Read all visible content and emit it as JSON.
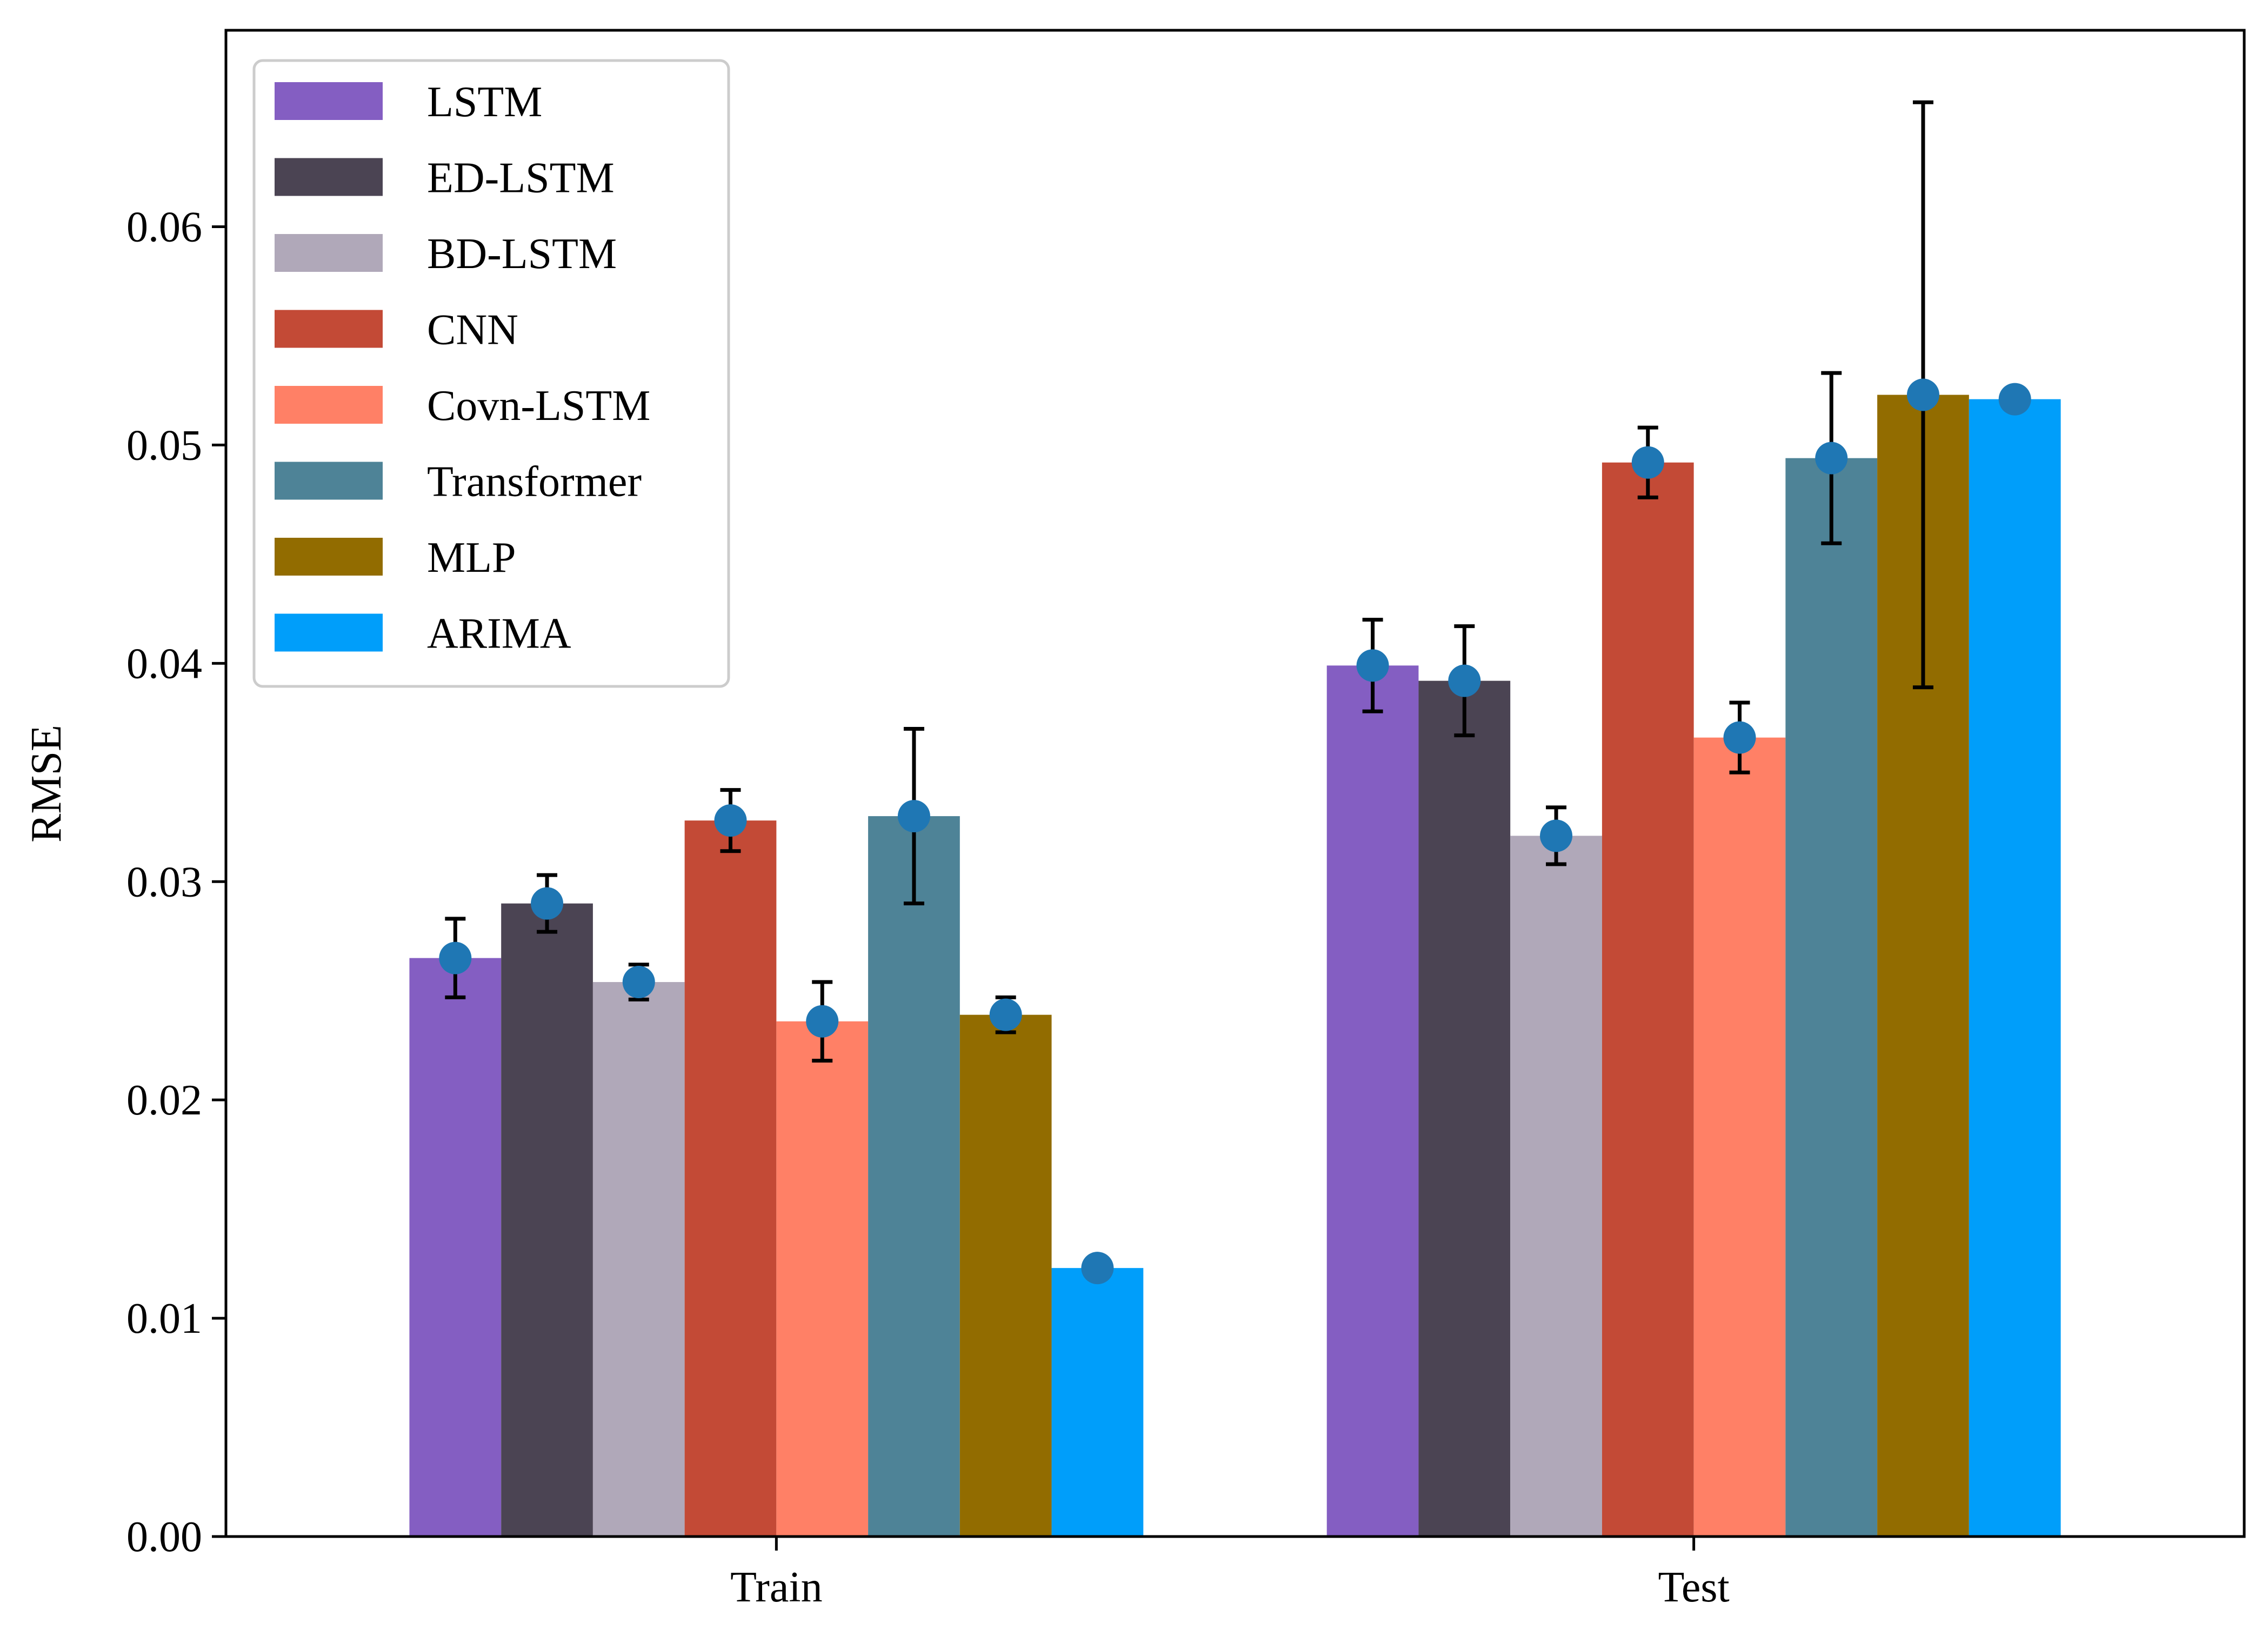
{
  "chart_data": {
    "type": "bar",
    "title": "",
    "xlabel": "",
    "ylabel": "RMSE",
    "categories": [
      "Train",
      "Test"
    ],
    "ylim": [
      0,
      0.069
    ],
    "yticks": [
      0.0,
      0.01,
      0.02,
      0.03,
      0.04,
      0.05,
      0.06
    ],
    "ytick_labels": [
      "0.00",
      "0.01",
      "0.02",
      "0.03",
      "0.04",
      "0.05",
      "0.06"
    ],
    "grid": false,
    "legend_position": "top-left",
    "marker_color": "#1f77b4",
    "error_bar_color": "#000000",
    "series": [
      {
        "name": "LSTM",
        "color": "#845EC2",
        "values": [
          0.0265,
          0.0399
        ],
        "errors": [
          0.0018,
          0.0021
        ]
      },
      {
        "name": "ED-LSTM",
        "color": "#4B4453",
        "values": [
          0.029,
          0.0392
        ],
        "errors": [
          0.0013,
          0.0025
        ]
      },
      {
        "name": "BD-LSTM",
        "color": "#B0A8B9",
        "values": [
          0.0254,
          0.0321
        ],
        "errors": [
          0.0008,
          0.0013
        ]
      },
      {
        "name": "CNN",
        "color": "#C34A36",
        "values": [
          0.0328,
          0.0492
        ],
        "errors": [
          0.0014,
          0.0016
        ]
      },
      {
        "name": "Covn-LSTM",
        "color": "#FF8066",
        "values": [
          0.0236,
          0.0366
        ],
        "errors": [
          0.0018,
          0.0016
        ]
      },
      {
        "name": "Transformer",
        "color": "#4E8397",
        "values": [
          0.033,
          0.0494
        ],
        "errors": [
          0.004,
          0.0039
        ]
      },
      {
        "name": "MLP",
        "color": "#926C00",
        "values": [
          0.0239,
          0.0523
        ],
        "errors": [
          0.0008,
          0.0134
        ]
      },
      {
        "name": "ARIMA",
        "color": "#009EFA",
        "values": [
          0.0123,
          0.0521
        ],
        "errors": [
          0.0,
          0.0
        ]
      }
    ]
  }
}
